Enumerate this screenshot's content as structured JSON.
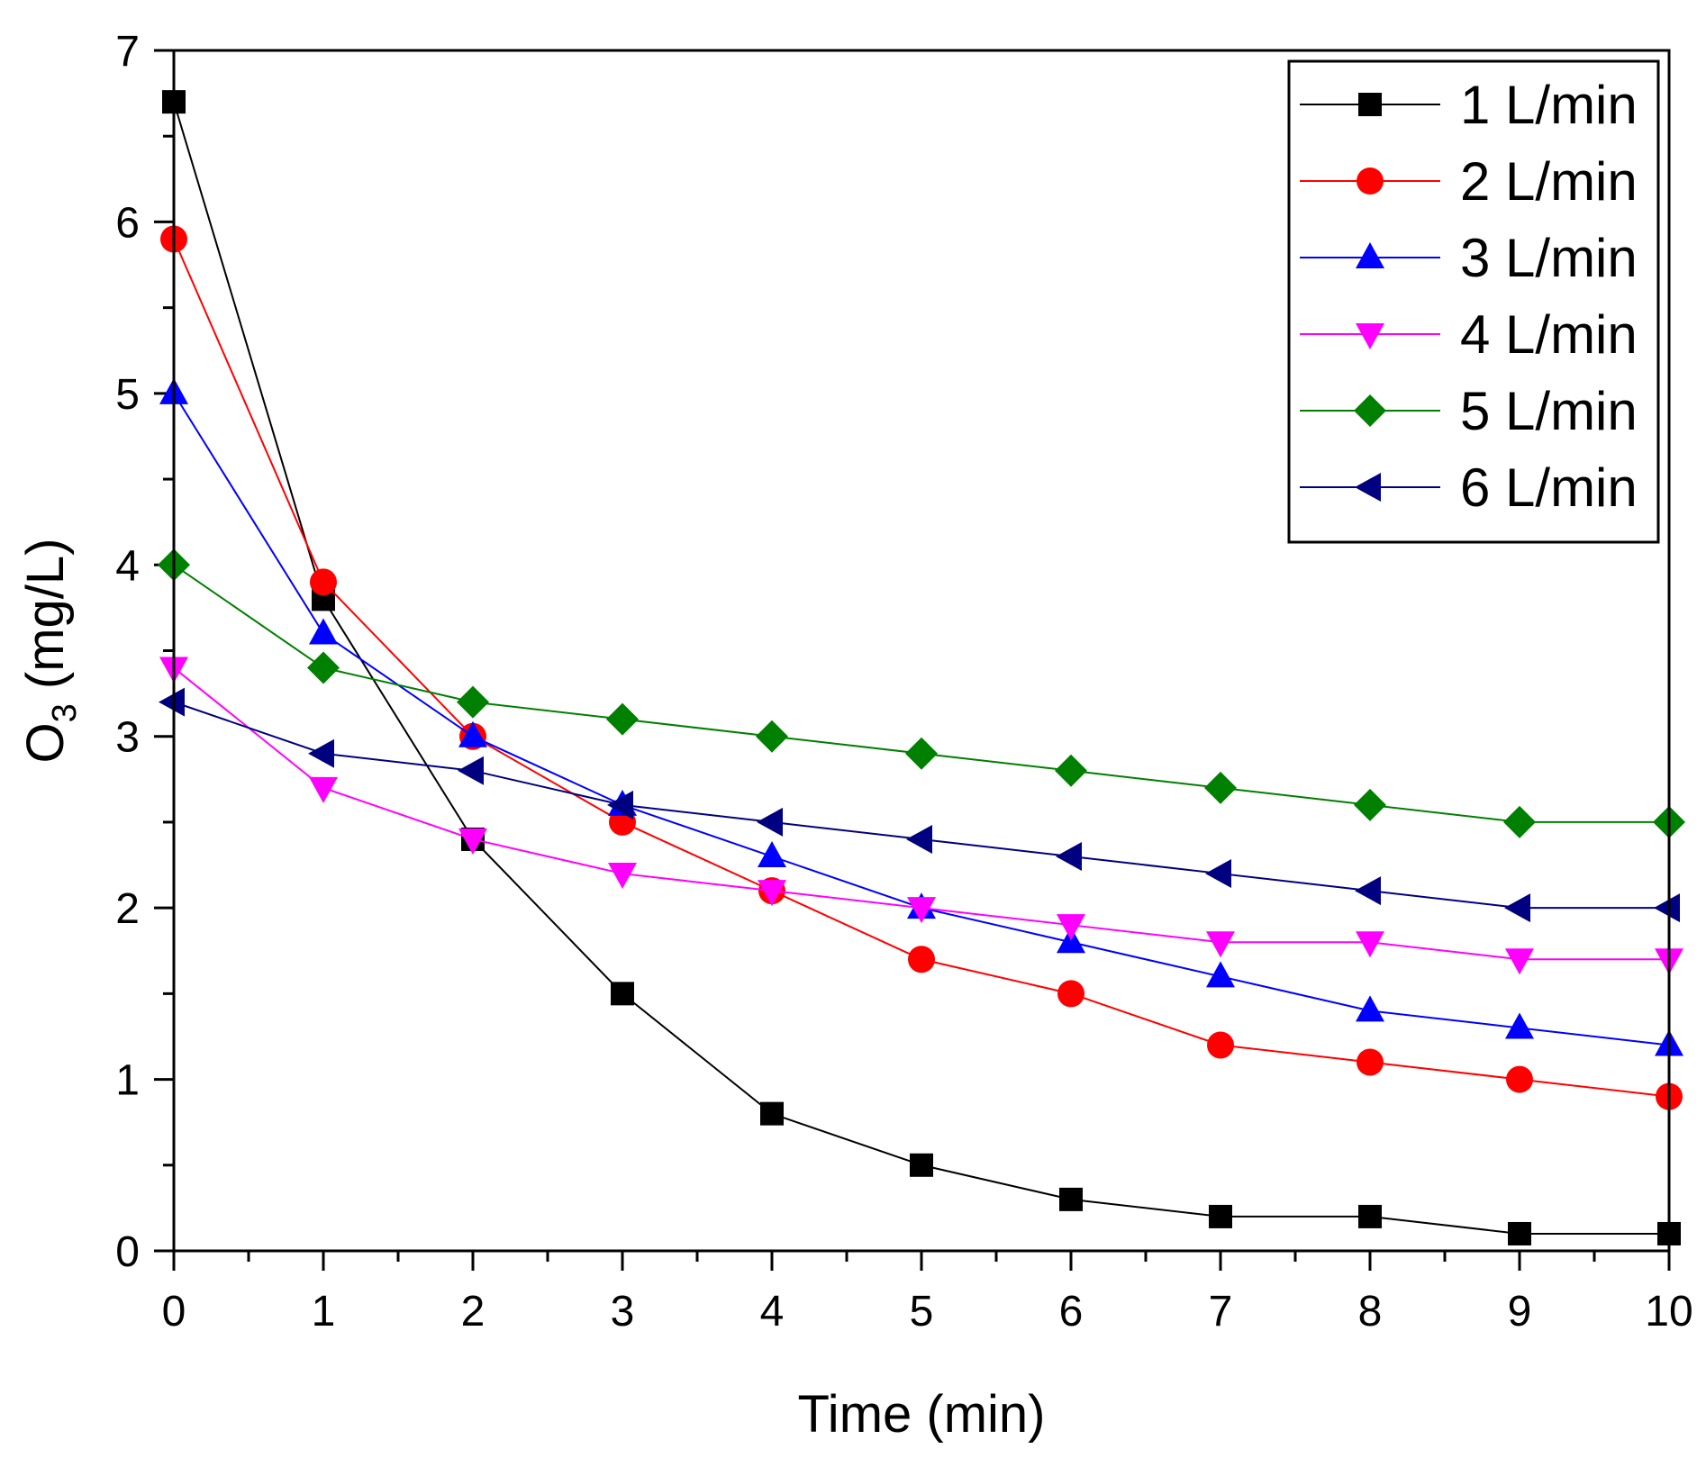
{
  "chart_data": {
    "type": "line",
    "title": "",
    "xlabel": "Time (min)",
    "ylabel_main": "O",
    "ylabel_sub": "3",
    "ylabel_rest": " (mg/L)",
    "xlim": [
      0,
      10
    ],
    "ylim": [
      0,
      7
    ],
    "xticks": [
      "0",
      "1",
      "2",
      "3",
      "4",
      "5",
      "6",
      "7",
      "8",
      "9",
      "10"
    ],
    "yticks": [
      "0",
      "1",
      "2",
      "3",
      "4",
      "5",
      "6",
      "7"
    ],
    "x": [
      0,
      1,
      2,
      3,
      4,
      5,
      6,
      7,
      8,
      9,
      10
    ],
    "legend_position": "top-right",
    "grid": false,
    "series": [
      {
        "name": "1 L/min",
        "color": "#000000",
        "marker": "square",
        "values": [
          6.7,
          3.8,
          2.4,
          1.5,
          0.8,
          0.5,
          0.3,
          0.2,
          0.2,
          0.1,
          0.1
        ]
      },
      {
        "name": "2 L/min",
        "color": "#ff0000",
        "marker": "circle",
        "values": [
          5.9,
          3.9,
          3.0,
          2.5,
          2.1,
          1.7,
          1.5,
          1.2,
          1.1,
          1.0,
          0.9
        ]
      },
      {
        "name": "3 L/min",
        "color": "#0000ff",
        "marker": "triangle-up",
        "values": [
          5.0,
          3.6,
          3.0,
          2.6,
          2.3,
          2.0,
          1.8,
          1.6,
          1.4,
          1.3,
          1.2
        ]
      },
      {
        "name": "4 L/min",
        "color": "#ff00ff",
        "marker": "triangle-down",
        "values": [
          3.4,
          2.7,
          2.4,
          2.2,
          2.1,
          2.0,
          1.9,
          1.8,
          1.8,
          1.7,
          1.7
        ]
      },
      {
        "name": "5 L/min",
        "color": "#008000",
        "marker": "diamond",
        "values": [
          4.0,
          3.4,
          3.2,
          3.1,
          3.0,
          2.9,
          2.8,
          2.7,
          2.6,
          2.5,
          2.5
        ]
      },
      {
        "name": "6 L/min",
        "color": "#000080",
        "marker": "triangle-left",
        "values": [
          3.2,
          2.9,
          2.8,
          2.6,
          2.5,
          2.4,
          2.3,
          2.2,
          2.1,
          2.0,
          2.0
        ]
      }
    ]
  }
}
